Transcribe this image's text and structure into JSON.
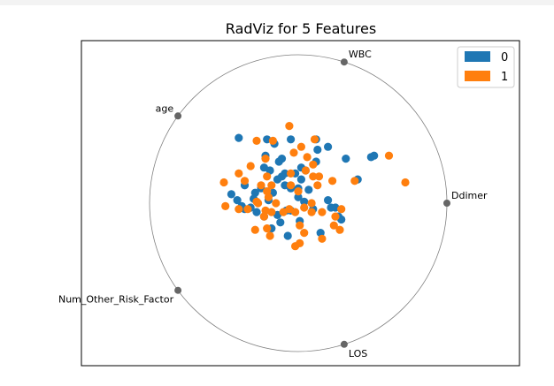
{
  "chart_data": {
    "type": "scatter",
    "title": "RadViz for 5 Features",
    "anchors": [
      "WBC",
      "Ddimer",
      "LOS",
      "Num_Other_Risk_Factor",
      "age"
    ],
    "axis_range": {
      "x": [
        -1.1,
        1.1
      ],
      "y": [
        -1.1,
        1.1
      ]
    },
    "grid": false,
    "legend": {
      "placement": "top-right",
      "entries": [
        "0",
        "1"
      ]
    },
    "colors": {
      "0": "#1f77b4",
      "1": "#ff7f0e",
      "anchor": "#666666",
      "circle": "#808080"
    },
    "series": [
      {
        "name": "0",
        "points": [
          [
            -0.4,
            0.44
          ],
          [
            -0.05,
            0.43
          ],
          [
            0.12,
            0.43
          ],
          [
            0.32,
            0.3
          ],
          [
            0.2,
            0.38
          ],
          [
            0.13,
            0.36
          ],
          [
            -0.21,
            0.43
          ],
          [
            -0.22,
            0.32
          ],
          [
            -0.13,
            0.28
          ],
          [
            -0.11,
            0.3
          ],
          [
            -0.23,
            0.24
          ],
          [
            -0.19,
            0.22
          ],
          [
            -0.09,
            0.2
          ],
          [
            -0.11,
            0.18
          ],
          [
            -0.14,
            0.16
          ],
          [
            -0.02,
            0.2
          ],
          [
            0.02,
            0.24
          ],
          [
            0.12,
            0.28
          ],
          [
            0.02,
            0.16
          ],
          [
            0.07,
            0.09
          ],
          [
            -0.36,
            0.12
          ],
          [
            -0.25,
            0.1
          ],
          [
            -0.29,
            0.07
          ],
          [
            -0.17,
            0.07
          ],
          [
            -0.2,
            0.02
          ],
          [
            -0.45,
            0.06
          ],
          [
            -0.3,
            0.03
          ],
          [
            -0.41,
            0.02
          ],
          [
            -0.38,
            -0.02
          ],
          [
            -0.32,
            -0.03
          ],
          [
            -0.36,
            -0.04
          ],
          [
            -0.28,
            -0.06
          ],
          [
            -0.23,
            -0.09
          ],
          [
            -0.14,
            -0.08
          ],
          [
            -0.08,
            -0.05
          ],
          [
            0.0,
            0.04
          ],
          [
            -0.05,
            0.1
          ],
          [
            -0.09,
            0.12
          ],
          [
            0.04,
            0.01
          ],
          [
            0.1,
            -0.04
          ],
          [
            0.2,
            0.02
          ],
          [
            0.25,
            -0.03
          ],
          [
            -0.12,
            -0.13
          ],
          [
            -0.05,
            -0.05
          ],
          [
            0.01,
            -0.12
          ],
          [
            -0.18,
            -0.17
          ],
          [
            -0.07,
            -0.22
          ],
          [
            0.22,
            -0.03
          ],
          [
            0.27,
            -0.09
          ],
          [
            0.29,
            -0.11
          ],
          [
            0.4,
            0.16
          ],
          [
            0.49,
            0.31
          ],
          [
            0.51,
            0.32
          ],
          [
            0.15,
            -0.2
          ],
          [
            0.0,
            0.1
          ],
          [
            0.05,
            0.22
          ],
          [
            -0.16,
            0.4
          ]
        ]
      },
      {
        "name": "1",
        "points": [
          [
            -0.06,
            0.52
          ],
          [
            -0.17,
            0.42
          ],
          [
            -0.03,
            0.34
          ],
          [
            0.02,
            0.38
          ],
          [
            0.11,
            0.43
          ],
          [
            0.06,
            0.31
          ],
          [
            0.05,
            0.22
          ],
          [
            -0.05,
            0.2
          ],
          [
            0.1,
            0.18
          ],
          [
            0.1,
            0.26
          ],
          [
            -0.32,
            0.25
          ],
          [
            -0.21,
            0.18
          ],
          [
            -0.36,
            0.15
          ],
          [
            -0.18,
            0.12
          ],
          [
            -0.25,
            0.12
          ],
          [
            -0.05,
            0.12
          ],
          [
            0.0,
            0.08
          ],
          [
            0.14,
            0.18
          ],
          [
            -0.5,
            0.14
          ],
          [
            -0.4,
            0.2
          ],
          [
            -0.21,
            0.08
          ],
          [
            -0.28,
            0.01
          ],
          [
            -0.2,
            0.04
          ],
          [
            -0.34,
            -0.04
          ],
          [
            -0.49,
            -0.02
          ],
          [
            -0.4,
            -0.04
          ],
          [
            -0.22,
            -0.05
          ],
          [
            -0.23,
            -0.09
          ],
          [
            -0.18,
            -0.06
          ],
          [
            -0.1,
            -0.06
          ],
          [
            -0.06,
            -0.04
          ],
          [
            -0.02,
            -0.06
          ],
          [
            0.04,
            -0.03
          ],
          [
            0.09,
            -0.06
          ],
          [
            0.16,
            -0.06
          ],
          [
            0.25,
            -0.09
          ],
          [
            0.24,
            -0.15
          ],
          [
            0.28,
            -0.18
          ],
          [
            0.04,
            -0.2
          ],
          [
            -0.29,
            -0.18
          ],
          [
            -0.21,
            -0.17
          ],
          [
            -0.19,
            -0.22
          ],
          [
            0.01,
            -0.27
          ],
          [
            -0.02,
            -0.29
          ],
          [
            0.16,
            -0.24
          ],
          [
            0.29,
            -0.04
          ],
          [
            0.38,
            0.15
          ],
          [
            0.61,
            0.32
          ],
          [
            0.72,
            0.14
          ],
          [
            0.23,
            0.15
          ],
          [
            -0.22,
            0.3
          ],
          [
            -0.28,
            0.42
          ],
          [
            0.09,
            0.0
          ],
          [
            -0.15,
            0.0
          ],
          [
            0.13,
            0.12
          ],
          [
            -0.27,
            0.0
          ],
          [
            0.01,
            -0.15
          ]
        ]
      }
    ]
  }
}
